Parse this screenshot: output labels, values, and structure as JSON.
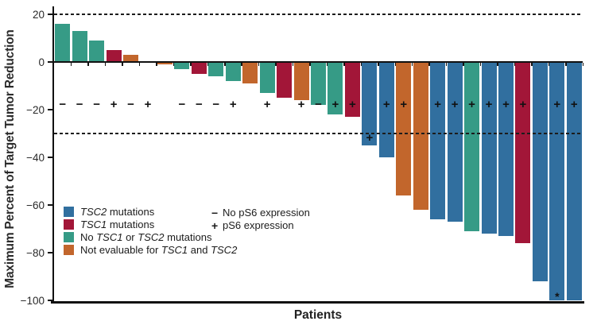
{
  "figure": {
    "y_axis_title": "Maximum Percent of Target Tumor Reduction",
    "x_axis_title": "Patients"
  },
  "chart_data": {
    "type": "bar",
    "subtype": "waterfall",
    "title": "",
    "xlabel": "Patients",
    "ylabel": "Maximum Percent of Target Tumor Reduction",
    "ylim": [
      -100,
      22
    ],
    "yticks": [
      20,
      0,
      -20,
      -40,
      -60,
      -80,
      -100
    ],
    "reference_lines": [
      20,
      -30
    ],
    "ps6_symbol_row_y": -18,
    "grid": false,
    "groups": {
      "tsc2": {
        "color": "#316F9F",
        "label_segments": [
          {
            "text": "TSC2",
            "italic": true
          },
          {
            "text": " mutations",
            "italic": false
          }
        ]
      },
      "tsc1": {
        "color": "#A21638",
        "label_segments": [
          {
            "text": "TSC1",
            "italic": true
          },
          {
            "text": " mutations",
            "italic": false
          }
        ]
      },
      "none": {
        "color": "#369B86",
        "label_segments": [
          {
            "text": "No ",
            "italic": false
          },
          {
            "text": "TSC1",
            "italic": true
          },
          {
            "text": " or ",
            "italic": false
          },
          {
            "text": "TSC2",
            "italic": true
          },
          {
            "text": " mutations",
            "italic": false
          }
        ]
      },
      "not_evaluable": {
        "color": "#C2662C",
        "label_segments": [
          {
            "text": "Not evaluable for ",
            "italic": false
          },
          {
            "text": "TSC1",
            "italic": true
          },
          {
            "text": " and ",
            "italic": false
          },
          {
            "text": "TSC2",
            "italic": true
          }
        ]
      }
    },
    "legend_order": [
      "tsc2",
      "tsc1",
      "none",
      "not_evaluable"
    ],
    "ps6_legend": [
      {
        "symbol": "−",
        "text": "No pS6 expression"
      },
      {
        "symbol": "+",
        "text": "pS6 expression"
      }
    ],
    "patients": [
      {
        "id": 1,
        "value": 16,
        "group": "none",
        "ps6": "-"
      },
      {
        "id": 2,
        "value": 13,
        "group": "none",
        "ps6": "-"
      },
      {
        "id": 3,
        "value": 9,
        "group": "none",
        "ps6": "-"
      },
      {
        "id": 4,
        "value": 5,
        "group": "tsc1",
        "ps6": "+"
      },
      {
        "id": 5,
        "value": 3,
        "group": "not_evaluable",
        "ps6": "-"
      },
      {
        "id": 6,
        "value": 0,
        "group": null,
        "ps6": "+"
      },
      {
        "id": 7,
        "value": -1,
        "group": "not_evaluable",
        "ps6": null
      },
      {
        "id": 8,
        "value": -3,
        "group": "none",
        "ps6": "-"
      },
      {
        "id": 9,
        "value": -5,
        "group": "tsc1",
        "ps6": "-"
      },
      {
        "id": 10,
        "value": -6,
        "group": "none",
        "ps6": "-"
      },
      {
        "id": 11,
        "value": -8,
        "group": "none",
        "ps6": "+"
      },
      {
        "id": 12,
        "value": -9,
        "group": "not_evaluable",
        "ps6": null
      },
      {
        "id": 13,
        "value": -13,
        "group": "none",
        "ps6": "+"
      },
      {
        "id": 14,
        "value": -15,
        "group": "tsc1",
        "ps6": null
      },
      {
        "id": 15,
        "value": -16,
        "group": "not_evaluable",
        "ps6": "+"
      },
      {
        "id": 16,
        "value": -18,
        "group": "none",
        "ps6": "-"
      },
      {
        "id": 17,
        "value": -22,
        "group": "none",
        "ps6": "+"
      },
      {
        "id": 18,
        "value": -23,
        "group": "tsc1",
        "ps6": "+"
      },
      {
        "id": 19,
        "value": -35,
        "group": "tsc2",
        "ps6": "+",
        "ps6_y": -32
      },
      {
        "id": 20,
        "value": -40,
        "group": "tsc2",
        "ps6": "+"
      },
      {
        "id": 21,
        "value": -56,
        "group": "not_evaluable",
        "ps6": "+"
      },
      {
        "id": 22,
        "value": -62,
        "group": "not_evaluable",
        "ps6": null
      },
      {
        "id": 23,
        "value": -66,
        "group": "tsc2",
        "ps6": "+"
      },
      {
        "id": 24,
        "value": -67,
        "group": "tsc2",
        "ps6": "+"
      },
      {
        "id": 25,
        "value": -71,
        "group": "none",
        "ps6": "+"
      },
      {
        "id": 26,
        "value": -72,
        "group": "tsc2",
        "ps6": "+"
      },
      {
        "id": 27,
        "value": -73,
        "group": "tsc2",
        "ps6": "+"
      },
      {
        "id": 28,
        "value": -76,
        "group": "tsc1",
        "ps6": "+"
      },
      {
        "id": 29,
        "value": -92,
        "group": "tsc2",
        "ps6": null
      },
      {
        "id": 30,
        "value": -100,
        "group": "tsc2",
        "ps6": "+",
        "annotation": "*",
        "annotation_y": -97
      },
      {
        "id": 31,
        "value": -100,
        "group": "tsc2",
        "ps6": "+"
      }
    ]
  }
}
